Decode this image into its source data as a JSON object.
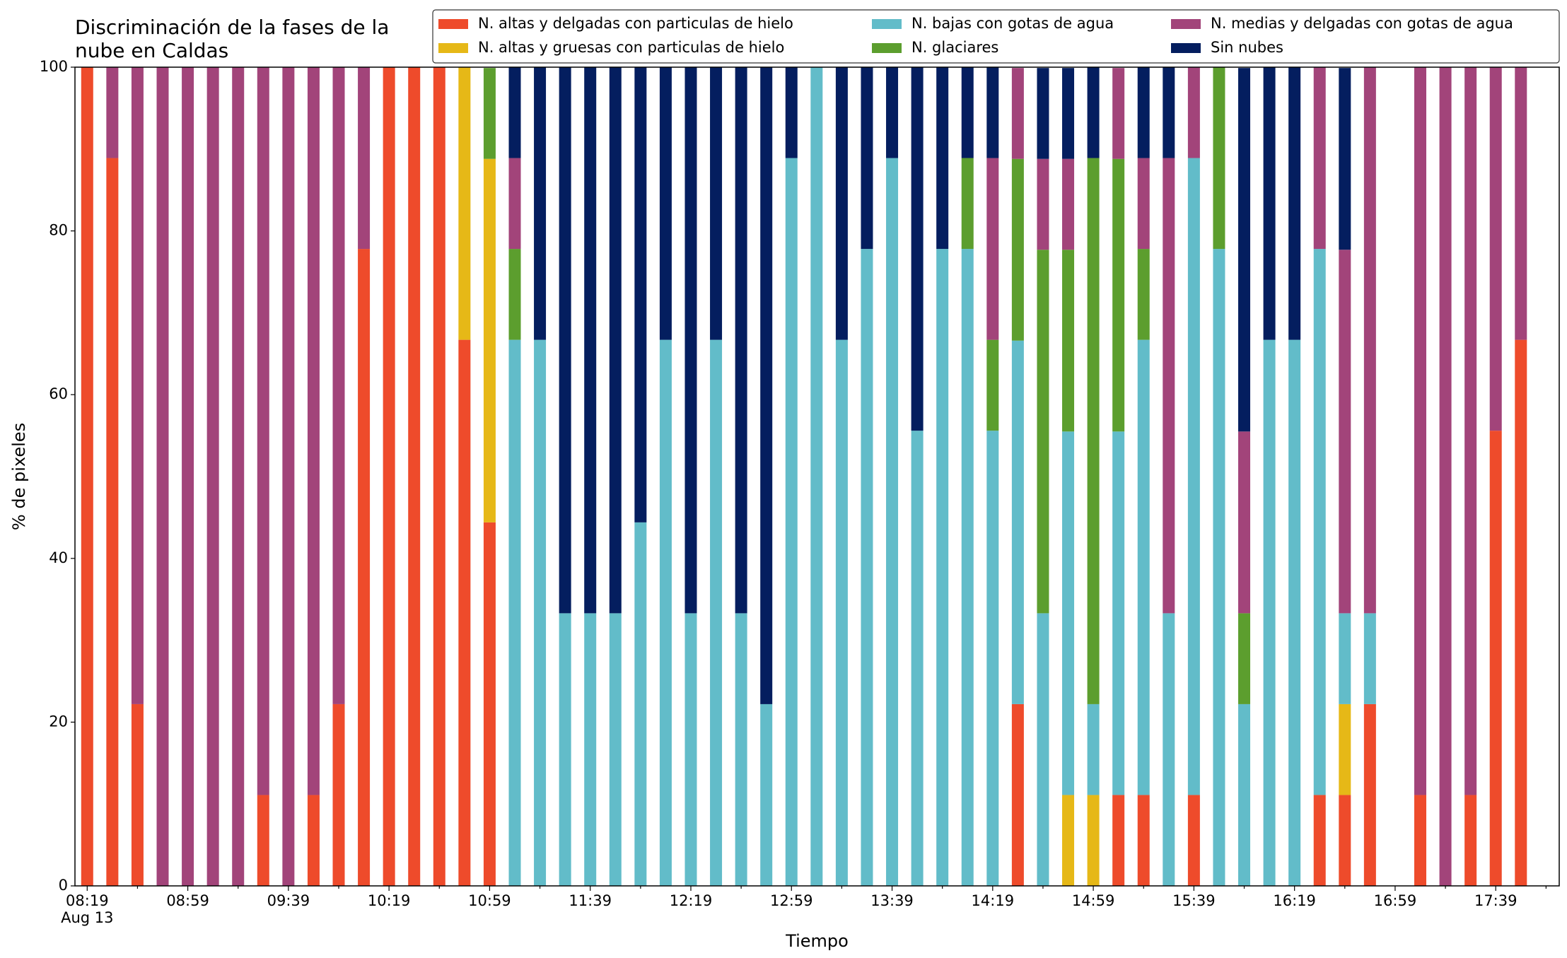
{
  "chart_data": {
    "type": "stacked-bar",
    "title": "Discriminación de la fases de la nube en Caldas",
    "x_label": "Tiempo",
    "y_label": "% de pixeles",
    "date_label": "Aug 13",
    "categories": [
      "08:19",
      null,
      null,
      null,
      "08:59",
      null,
      null,
      null,
      "09:39",
      null,
      null,
      null,
      "10:19",
      null,
      null,
      null,
      "10:59",
      null,
      null,
      null,
      "11:39",
      null,
      null,
      null,
      "12:19",
      null,
      null,
      null,
      "12:59",
      null,
      null,
      null,
      "13:39",
      null,
      null,
      null,
      "14:19",
      null,
      null,
      null,
      "14:59",
      null,
      null,
      null,
      "15:39",
      null,
      null,
      null,
      "16:19",
      null,
      null,
      null,
      "16:59",
      null,
      null,
      null,
      "17:39",
      null
    ],
    "ylim": [
      0,
      100
    ],
    "yticks": [
      0,
      20,
      40,
      60,
      80,
      100
    ],
    "series": [
      {
        "name": "N. altas y delgadas con particulas de hielo",
        "color": "#ee4b2b",
        "values": [
          100,
          88.9,
          22.2,
          0,
          0,
          0,
          0,
          11.1,
          0,
          11.1,
          22.2,
          77.8,
          100,
          100,
          100,
          66.7,
          44.4,
          0,
          0,
          0,
          0,
          0,
          0,
          0,
          0,
          0,
          0,
          0,
          0,
          0,
          0,
          0,
          0,
          0,
          0,
          0,
          0,
          22.2,
          0,
          0,
          0,
          11.1,
          11.1,
          0,
          11.1,
          0,
          0,
          0,
          0,
          11.1,
          11.1,
          22.2,
          null,
          11.1,
          0,
          11.1,
          55.6,
          66.7
        ]
      },
      {
        "name": "N. altas y gruesas con particulas de hielo",
        "color": "#e6b817",
        "values": [
          0,
          0,
          0,
          0,
          0,
          0,
          0,
          0,
          0,
          0,
          0,
          0,
          0,
          0,
          0,
          33.3,
          44.4,
          0,
          0,
          0,
          0,
          0,
          0,
          0,
          0,
          0,
          0,
          0,
          0,
          0,
          0,
          0,
          0,
          0,
          0,
          0,
          0,
          0,
          0,
          11.1,
          11.1,
          0,
          0,
          0,
          0,
          0,
          0,
          0,
          0,
          0,
          11.1,
          0,
          null,
          0,
          0,
          0,
          0,
          0
        ]
      },
      {
        "name": "N. bajas con gotas de agua",
        "color": "#62bcc9",
        "values": [
          0,
          0,
          0,
          0,
          0,
          0,
          0,
          0,
          0,
          0,
          0,
          0,
          0,
          0,
          0,
          0,
          0,
          66.7,
          66.7,
          33.3,
          33.3,
          33.3,
          44.4,
          66.7,
          33.3,
          66.7,
          33.3,
          22.2,
          88.9,
          100,
          66.7,
          77.8,
          88.9,
          55.6,
          77.8,
          77.8,
          55.6,
          44.4,
          33.3,
          44.4,
          11.1,
          44.4,
          55.6,
          33.3,
          77.8,
          77.8,
          22.2,
          66.7,
          66.7,
          66.7,
          11.1,
          11.1,
          null,
          0,
          0,
          0,
          0,
          0
        ]
      },
      {
        "name": "N. glaciares",
        "color": "#5c9e2e",
        "values": [
          0,
          0,
          0,
          0,
          0,
          0,
          0,
          0,
          0,
          0,
          0,
          0,
          0,
          0,
          0,
          0,
          11.1,
          11.1,
          0,
          0,
          0,
          0,
          0,
          0,
          0,
          0,
          0,
          0,
          0,
          0,
          0,
          0,
          0,
          0,
          0,
          11.1,
          11.1,
          22.2,
          44.4,
          22.2,
          66.7,
          33.3,
          11.1,
          0,
          0,
          22.2,
          11.1,
          0,
          0,
          0,
          0,
          0,
          null,
          0,
          0,
          0,
          0,
          0
        ]
      },
      {
        "name": "N. medias y delgadas con gotas de agua",
        "color": "#a2447a",
        "values": [
          0,
          11.1,
          77.8,
          100,
          100,
          100,
          100,
          88.9,
          100,
          88.9,
          77.8,
          22.2,
          0,
          0,
          0,
          0,
          0,
          11.1,
          0,
          0,
          0,
          0,
          0,
          0,
          0,
          0,
          0,
          0,
          0,
          0,
          0,
          0,
          0,
          0,
          0,
          0,
          22.2,
          11.1,
          11.1,
          11.1,
          0,
          11.1,
          11.1,
          55.6,
          11.1,
          0,
          22.2,
          0,
          0,
          22.2,
          44.4,
          66.7,
          null,
          88.9,
          100,
          88.9,
          44.4,
          33.3
        ]
      },
      {
        "name": "Sin nubes",
        "color": "#041e5f",
        "values": [
          0,
          0,
          0,
          0,
          0,
          0,
          0,
          0,
          0,
          0,
          0,
          0,
          0,
          0,
          0,
          0,
          0,
          11.1,
          33.3,
          66.7,
          66.7,
          66.7,
          55.6,
          33.3,
          66.7,
          33.3,
          66.7,
          77.8,
          11.1,
          0,
          33.3,
          22.2,
          11.1,
          44.4,
          22.2,
          11.1,
          11.1,
          0,
          11.1,
          11.1,
          11.1,
          0,
          11.1,
          11.1,
          0,
          0,
          44.4,
          33.3,
          33.3,
          0,
          22.2,
          0,
          null,
          0,
          0,
          0,
          0,
          0
        ]
      }
    ]
  }
}
